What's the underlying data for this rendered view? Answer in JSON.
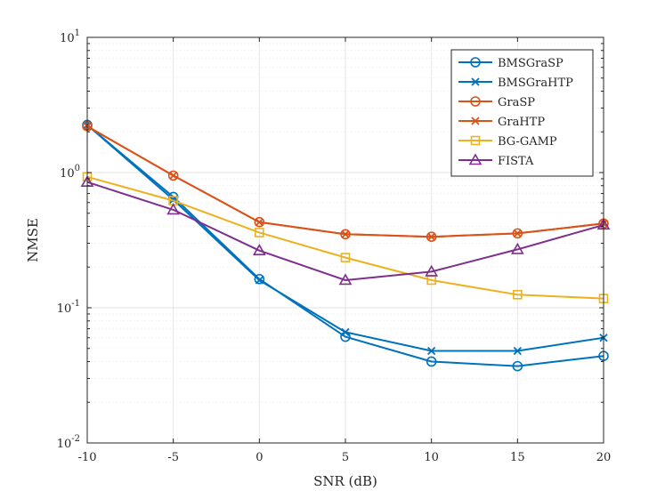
{
  "chart_data": {
    "type": "line",
    "title": "",
    "xlabel": "SNR (dB)",
    "ylabel": "NMSE",
    "yscale": "log",
    "xlim": [
      -10,
      20
    ],
    "ylim": [
      0.01,
      10
    ],
    "grid": true,
    "legend_position": "top-right",
    "x": [
      -10,
      -5,
      0,
      5,
      10,
      15,
      20
    ],
    "x_tick_labels": [
      "-10",
      "-5",
      "0",
      "5",
      "10",
      "15",
      "20"
    ],
    "y_ticks": [
      {
        "value": 0.01,
        "base": "10",
        "exp": "-2"
      },
      {
        "value": 0.1,
        "base": "10",
        "exp": "-1"
      },
      {
        "value": 1,
        "base": "10",
        "exp": "0"
      },
      {
        "value": 10,
        "base": "10",
        "exp": "1"
      }
    ],
    "series": [
      {
        "name": "BMSGraSP",
        "color": "#0072BD",
        "marker": "circle",
        "values": [
          2.25,
          0.66,
          0.163,
          0.061,
          0.04,
          0.037,
          0.044
        ]
      },
      {
        "name": "BMSGraHTP",
        "color": "#0072BD",
        "marker": "x",
        "values": [
          2.25,
          0.63,
          0.16,
          0.066,
          0.048,
          0.048,
          0.06
        ]
      },
      {
        "name": "GraSP",
        "color": "#D95319",
        "marker": "circle",
        "values": [
          2.2,
          0.95,
          0.43,
          0.35,
          0.335,
          0.355,
          0.42
        ]
      },
      {
        "name": "GraHTP",
        "color": "#D95319",
        "marker": "x",
        "values": [
          2.2,
          0.95,
          0.43,
          0.35,
          0.335,
          0.355,
          0.42
        ]
      },
      {
        "name": "BG-GAMP",
        "color": "#EDB120",
        "marker": "square",
        "values": [
          0.93,
          0.62,
          0.36,
          0.235,
          0.16,
          0.125,
          0.117
        ]
      },
      {
        "name": "FISTA",
        "color": "#7E2F8E",
        "marker": "triangle",
        "values": [
          0.85,
          0.53,
          0.265,
          0.16,
          0.185,
          0.27,
          0.41
        ]
      }
    ]
  }
}
